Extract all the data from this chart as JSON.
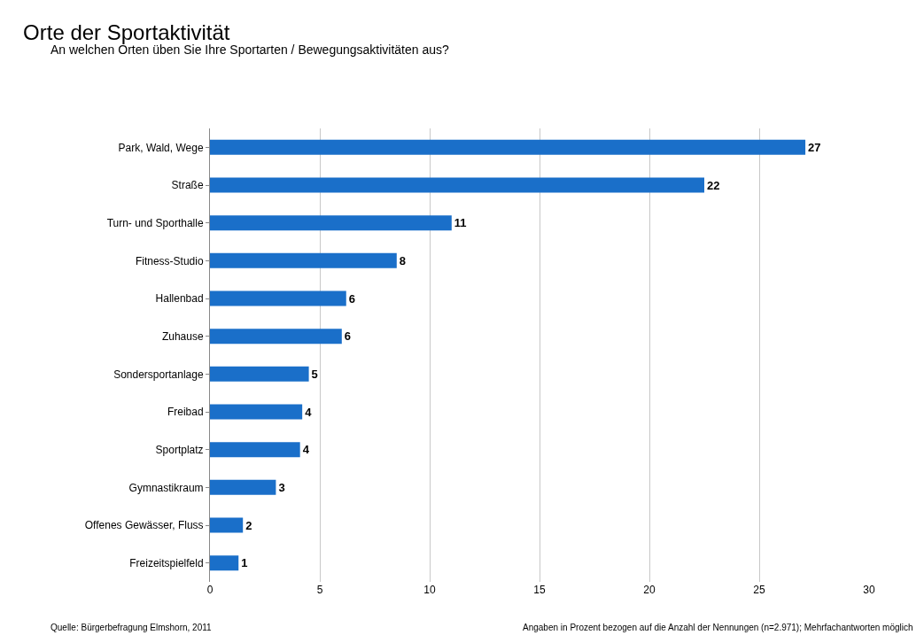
{
  "chart_data": {
    "type": "bar",
    "orientation": "horizontal",
    "title": "Orte der Sportaktivität",
    "subtitle": "An welchen Orten üben Sie Ihre Sportarten / Bewegungsaktivitäten aus?",
    "categories": [
      "Park, Wald, Wege",
      "Straße",
      "Turn- und Sporthalle",
      "Fitness-Studio",
      "Hallenbad",
      "Zuhause",
      "Sondersportanlage",
      "Freibad",
      "Sportplatz",
      "Gymnastikraum",
      "Offenes Gewässer, Fluss",
      "Freizeitspielfeld"
    ],
    "values": [
      27.1,
      22.5,
      11.0,
      8.5,
      6.2,
      6.0,
      4.5,
      4.2,
      4.1,
      3.0,
      1.5,
      1.3
    ],
    "value_labels": [
      "27",
      "22",
      "11",
      "8",
      "6",
      "6",
      "5",
      "4",
      "4",
      "3",
      "2",
      "1"
    ],
    "color": "#1a6fc9",
    "xlim": [
      0,
      30
    ],
    "xticks": [
      0,
      5,
      10,
      15,
      20,
      25,
      30
    ],
    "grid": "x",
    "annotations": [
      "Quelle: Bürgerbefragung Elmshorn, 2011",
      "Angaben in Prozent bezogen auf die Anzahl der Nennungen (n=2.971); Mehrfachantworten möglich"
    ]
  }
}
